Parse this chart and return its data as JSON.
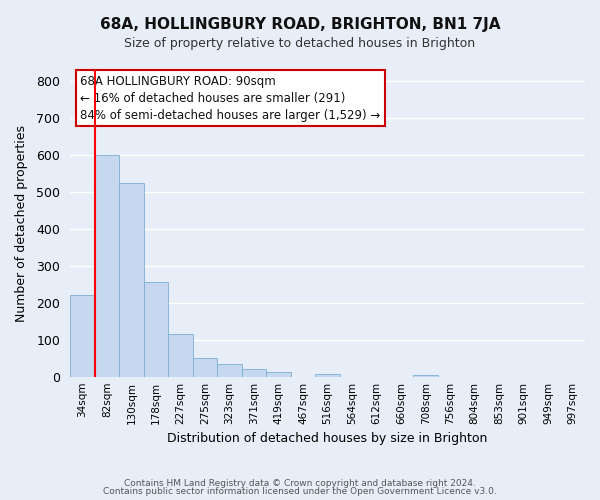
{
  "title": "68A, HOLLINGBURY ROAD, BRIGHTON, BN1 7JA",
  "subtitle": "Size of property relative to detached houses in Brighton",
  "xlabel": "Distribution of detached houses by size in Brighton",
  "ylabel": "Number of detached properties",
  "bar_labels": [
    "34sqm",
    "82sqm",
    "130sqm",
    "178sqm",
    "227sqm",
    "275sqm",
    "323sqm",
    "371sqm",
    "419sqm",
    "467sqm",
    "516sqm",
    "564sqm",
    "612sqm",
    "660sqm",
    "708sqm",
    "756sqm",
    "804sqm",
    "853sqm",
    "901sqm",
    "949sqm",
    "997sqm"
  ],
  "bar_heights": [
    220,
    600,
    525,
    255,
    115,
    50,
    35,
    20,
    12,
    0,
    8,
    0,
    0,
    0,
    5,
    0,
    0,
    0,
    0,
    0,
    0
  ],
  "bar_color": "#c5d8f0",
  "bar_edge_color": "#7baed4",
  "ylim": [
    0,
    830
  ],
  "yticks": [
    0,
    100,
    200,
    300,
    400,
    500,
    600,
    700,
    800
  ],
  "red_line_index": 1,
  "annotation_title": "68A HOLLINGBURY ROAD: 90sqm",
  "annotation_line1": "← 16% of detached houses are smaller (291)",
  "annotation_line2": "84% of semi-detached houses are larger (1,529) →",
  "footer_line1": "Contains HM Land Registry data © Crown copyright and database right 2024.",
  "footer_line2": "Contains public sector information licensed under the Open Government Licence v3.0.",
  "background_color": "#e8eef7",
  "grid_color": "#ffffff"
}
